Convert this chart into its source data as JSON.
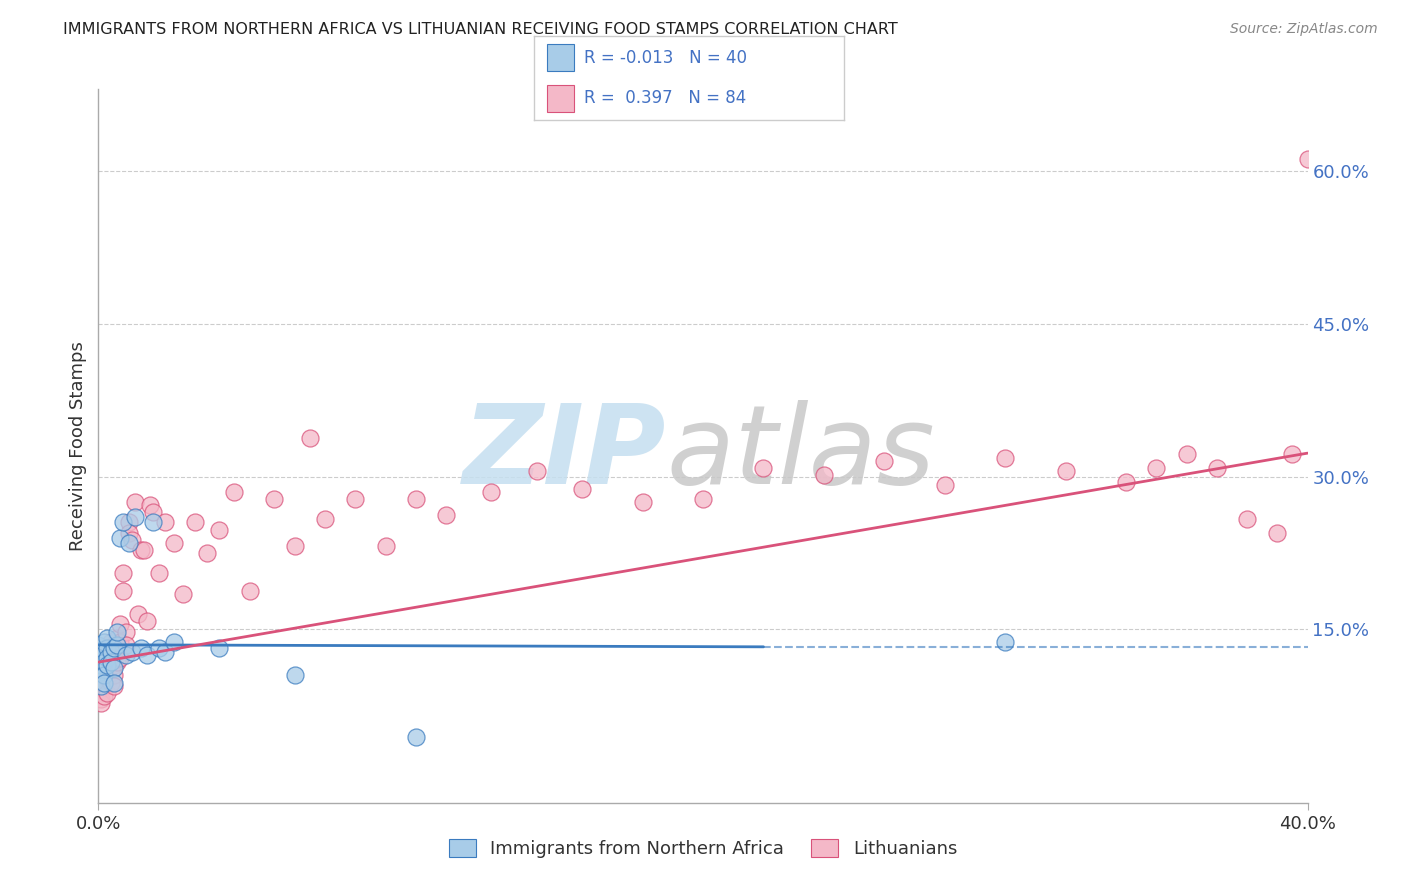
{
  "title": "IMMIGRANTS FROM NORTHERN AFRICA VS LITHUANIAN RECEIVING FOOD STAMPS CORRELATION CHART",
  "source": "Source: ZipAtlas.com",
  "ylabel": "Receiving Food Stamps",
  "x_min": 0.0,
  "x_max": 0.4,
  "y_min": -0.02,
  "y_max": 0.68,
  "color_blue": "#a8cce8",
  "color_pink": "#f4b8c8",
  "color_line_blue": "#3a7bbf",
  "color_line_pink": "#d9527a",
  "watermark_zip": "#c5dff0",
  "watermark_atlas": "#c8c8c8",
  "legend_box_bg": "#ffffff",
  "legend_box_edge": "#cccccc",
  "right_tick_color": "#4472c4",
  "title_color": "#222222",
  "source_color": "#888888",
  "ylabel_color": "#333333",
  "grid_color": "#cccccc",
  "spine_color": "#aaaaaa",
  "blue_line_end_x": 0.22,
  "blue_line_start_y": 0.135,
  "blue_line_end_y": 0.133,
  "pink_line_start_y": 0.118,
  "pink_line_end_y": 0.323,
  "scatter_blue_x": [
    0.0,
    0.0,
    0.0,
    0.001,
    0.001,
    0.001,
    0.001,
    0.001,
    0.002,
    0.002,
    0.002,
    0.002,
    0.002,
    0.003,
    0.003,
    0.003,
    0.003,
    0.004,
    0.004,
    0.005,
    0.005,
    0.005,
    0.006,
    0.006,
    0.007,
    0.008,
    0.009,
    0.01,
    0.011,
    0.012,
    0.014,
    0.016,
    0.018,
    0.02,
    0.022,
    0.025,
    0.04,
    0.065,
    0.105,
    0.3
  ],
  "scatter_blue_y": [
    0.11,
    0.12,
    0.135,
    0.13,
    0.125,
    0.115,
    0.108,
    0.095,
    0.128,
    0.118,
    0.138,
    0.105,
    0.098,
    0.132,
    0.122,
    0.115,
    0.142,
    0.128,
    0.118,
    0.132,
    0.112,
    0.098,
    0.135,
    0.148,
    0.24,
    0.255,
    0.125,
    0.235,
    0.128,
    0.26,
    0.132,
    0.125,
    0.255,
    0.132,
    0.128,
    0.138,
    0.132,
    0.105,
    0.045,
    0.138
  ],
  "scatter_pink_x": [
    0.0,
    0.0,
    0.0,
    0.001,
    0.001,
    0.001,
    0.001,
    0.001,
    0.001,
    0.002,
    0.002,
    0.002,
    0.002,
    0.002,
    0.003,
    0.003,
    0.003,
    0.003,
    0.003,
    0.004,
    0.004,
    0.004,
    0.004,
    0.004,
    0.005,
    0.005,
    0.005,
    0.005,
    0.006,
    0.006,
    0.006,
    0.007,
    0.007,
    0.007,
    0.008,
    0.008,
    0.009,
    0.009,
    0.01,
    0.01,
    0.011,
    0.012,
    0.013,
    0.014,
    0.015,
    0.016,
    0.017,
    0.018,
    0.02,
    0.022,
    0.025,
    0.028,
    0.032,
    0.036,
    0.04,
    0.045,
    0.05,
    0.058,
    0.065,
    0.075,
    0.085,
    0.095,
    0.105,
    0.115,
    0.13,
    0.145,
    0.16,
    0.18,
    0.2,
    0.22,
    0.24,
    0.26,
    0.28,
    0.3,
    0.32,
    0.34,
    0.35,
    0.36,
    0.37,
    0.38,
    0.39,
    0.395,
    0.4,
    0.07
  ],
  "scatter_pink_y": [
    0.108,
    0.098,
    0.088,
    0.112,
    0.102,
    0.092,
    0.082,
    0.118,
    0.078,
    0.115,
    0.105,
    0.095,
    0.085,
    0.122,
    0.132,
    0.122,
    0.112,
    0.102,
    0.088,
    0.128,
    0.118,
    0.108,
    0.098,
    0.138,
    0.125,
    0.115,
    0.105,
    0.095,
    0.142,
    0.132,
    0.118,
    0.155,
    0.138,
    0.122,
    0.205,
    0.188,
    0.148,
    0.135,
    0.255,
    0.245,
    0.238,
    0.275,
    0.165,
    0.228,
    0.228,
    0.158,
    0.272,
    0.265,
    0.205,
    0.255,
    0.235,
    0.185,
    0.255,
    0.225,
    0.248,
    0.285,
    0.188,
    0.278,
    0.232,
    0.258,
    0.278,
    0.232,
    0.278,
    0.262,
    0.285,
    0.305,
    0.288,
    0.275,
    0.278,
    0.308,
    0.302,
    0.315,
    0.292,
    0.318,
    0.305,
    0.295,
    0.308,
    0.322,
    0.308,
    0.258,
    0.245,
    0.322,
    0.612,
    0.338
  ]
}
